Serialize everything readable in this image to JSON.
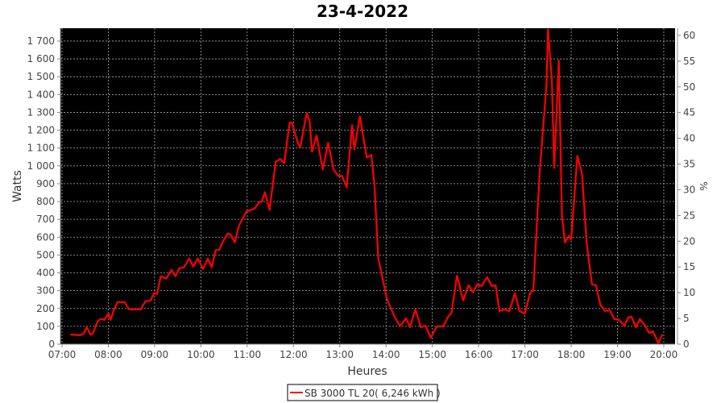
{
  "chart_data": {
    "type": "line",
    "title": "23-4-2022",
    "xlabel": "Heures",
    "ylabel": "Watts",
    "y2label": "%",
    "xlim": [
      "07:00",
      "20:15"
    ],
    "ylim": [
      0,
      1772
    ],
    "y2lim": [
      0,
      61.4
    ],
    "grid": true,
    "background": "#000000",
    "legend_placement": "bottom",
    "x_ticks": [
      "07:00",
      "08:00",
      "09:00",
      "10:00",
      "11:00",
      "12:00",
      "13:00",
      "14:00",
      "15:00",
      "16:00",
      "17:00",
      "18:00",
      "19:00",
      "20:00"
    ],
    "y_ticks": [
      0,
      100,
      200,
      300,
      400,
      500,
      600,
      700,
      800,
      900,
      1000,
      1100,
      1200,
      1300,
      1400,
      1500,
      1600,
      1700
    ],
    "y_tick_labels": [
      "0",
      "100",
      "200",
      "300",
      "400",
      "500",
      "600",
      "700",
      "800",
      "900",
      "1 000",
      "1 100",
      "1 200",
      "1 300",
      "1 400",
      "1 500",
      "1 600",
      "1 700"
    ],
    "y2_ticks": [
      "0",
      "5",
      "10",
      "15",
      "20",
      "25",
      "30",
      "35",
      "40",
      "45",
      "50",
      "55",
      "60"
    ],
    "series": [
      {
        "name": "SB 3000 TL 20( 6,246 kWh )",
        "color": "#ff0000",
        "x": [
          "07:11",
          "07:24",
          "07:28",
          "07:32",
          "07:37",
          "07:40",
          "07:46",
          "07:50",
          "07:55",
          "08:00",
          "08:03",
          "08:07",
          "08:12",
          "08:21",
          "08:27",
          "08:42",
          "08:48",
          "08:55",
          "08:59",
          "09:03",
          "09:08",
          "09:15",
          "09:22",
          "09:27",
          "09:32",
          "09:38",
          "09:45",
          "09:50",
          "09:56",
          "10:03",
          "10:09",
          "10:14",
          "10:19",
          "10:24",
          "10:29",
          "10:35",
          "10:38",
          "10:44",
          "10:49",
          "10:53",
          "10:59",
          "11:05",
          "11:10",
          "11:16",
          "11:19",
          "11:23",
          "11:29",
          "11:37",
          "11:43",
          "11:48",
          "11:55",
          "11:58",
          "12:06",
          "12:09",
          "12:17",
          "12:21",
          "12:24",
          "12:30",
          "12:38",
          "12:45",
          "12:52",
          "12:58",
          "13:03",
          "13:09",
          "13:16",
          "13:19",
          "13:26",
          "13:35",
          "13:41",
          "13:45",
          "13:50",
          "13:55",
          "14:01",
          "14:11",
          "14:18",
          "14:26",
          "14:31",
          "14:38",
          "14:45",
          "14:51",
          "14:58",
          "15:06",
          "15:14",
          "15:20",
          "15:25",
          "15:32",
          "15:40",
          "15:47",
          "15:53",
          "15:58",
          "16:04",
          "16:11",
          "16:17",
          "16:22",
          "16:27",
          "16:34",
          "16:40",
          "16:47",
          "16:53",
          "17:00",
          "17:07",
          "17:11",
          "17:19",
          "17:28",
          "17:30",
          "17:35",
          "17:38",
          "17:44",
          "17:48",
          "17:52",
          "17:57",
          "18:00",
          "18:08",
          "18:14",
          "18:20",
          "18:27",
          "18:32",
          "18:38",
          "18:44",
          "18:50",
          "18:56",
          "19:02",
          "19:09",
          "19:14",
          "19:18",
          "19:24",
          "19:29",
          "19:35",
          "19:41",
          "19:46",
          "19:53",
          "19:58"
        ],
        "y": [
          54,
          50,
          59,
          95,
          54,
          59,
          127,
          141,
          136,
          172,
          136,
          190,
          236,
          236,
          195,
          195,
          240,
          245,
          286,
          281,
          381,
          367,
          417,
          381,
          426,
          431,
          480,
          435,
          480,
          422,
          480,
          431,
          526,
          530,
          580,
          621,
          616,
          571,
          662,
          694,
          743,
          752,
          762,
          798,
          798,
          852,
          752,
          1024,
          1038,
          1015,
          1242,
          1242,
          1124,
          1106,
          1296,
          1251,
          1079,
          1170,
          979,
          1129,
          979,
          943,
          943,
          879,
          1228,
          1092,
          1278,
          1047,
          1061,
          889,
          480,
          381,
          254,
          154,
          100,
          145,
          95,
          195,
          95,
          104,
          36,
          100,
          100,
          150,
          177,
          385,
          245,
          331,
          290,
          335,
          326,
          376,
          326,
          331,
          186,
          195,
          186,
          286,
          186,
          172,
          290,
          299,
          956,
          1455,
          1765,
          1478,
          988,
          1591,
          716,
          571,
          607,
          585,
          1056,
          956,
          571,
          335,
          331,
          218,
          186,
          190,
          141,
          136,
          104,
          150,
          154,
          95,
          141,
          109,
          63,
          72,
          5,
          54
        ]
      }
    ]
  }
}
